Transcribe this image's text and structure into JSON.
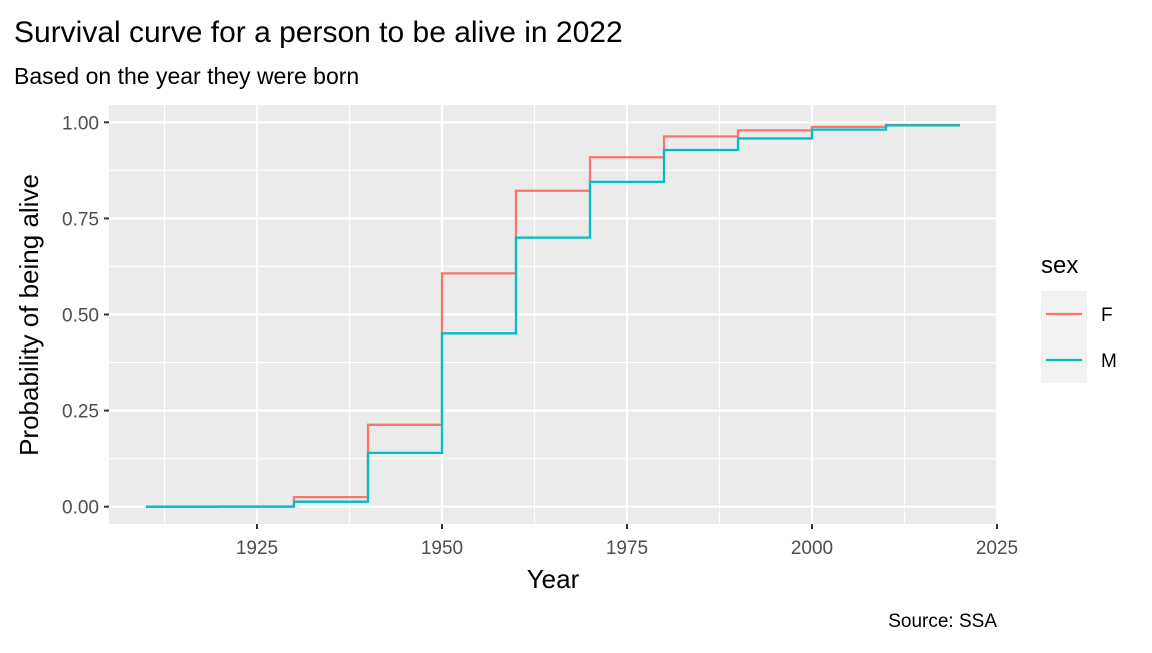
{
  "chart_data": {
    "type": "line",
    "step": true,
    "title": "Survival curve for a person to be alive in 2022",
    "subtitle": "Based on the year they were born",
    "xlabel": "Year",
    "ylabel": "Probability of being alive",
    "caption": "Source: SSA",
    "xlim": [
      1905,
      2025
    ],
    "ylim": [
      -0.045,
      1.045
    ],
    "x_ticks": [
      1925,
      1950,
      1975,
      2000,
      2025
    ],
    "x_tick_labels": [
      "1925",
      "1950",
      "1975",
      "2000",
      "2025"
    ],
    "y_ticks": [
      0,
      0.25,
      0.5,
      0.75,
      1
    ],
    "y_tick_labels": [
      "0.00",
      "0.25",
      "0.50",
      "0.75",
      "1.00"
    ],
    "grid": true,
    "legend": {
      "title": "sex",
      "position": "right",
      "entries": [
        "F",
        "M"
      ]
    },
    "x": [
      1910,
      1920,
      1930,
      1940,
      1950,
      1960,
      1970,
      1980,
      1990,
      2000,
      2010,
      2020
    ],
    "series": [
      {
        "name": "F",
        "color": "#F8766D",
        "values": [
          0.0,
          0.0005,
          0.025,
          0.213,
          0.607,
          0.822,
          0.909,
          0.963,
          0.979,
          0.988,
          0.993,
          0.993
        ]
      },
      {
        "name": "M",
        "color": "#00BFC4",
        "values": [
          0.0,
          0.0002,
          0.013,
          0.14,
          0.451,
          0.7,
          0.845,
          0.928,
          0.958,
          0.981,
          0.992,
          0.992
        ]
      }
    ]
  }
}
